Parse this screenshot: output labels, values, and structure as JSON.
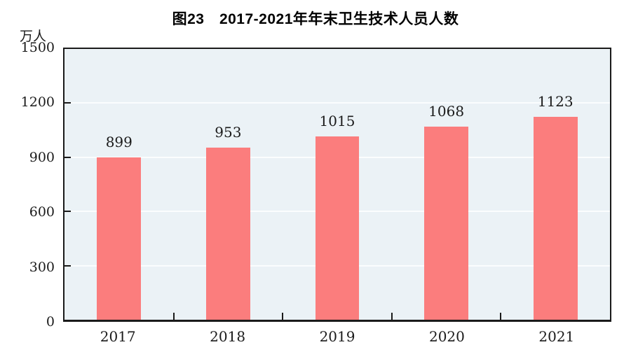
{
  "chart_data": {
    "type": "bar",
    "title": "图23　2017-2021年年末卫生技术人员人数",
    "unit_label": "万人",
    "categories": [
      "2017",
      "2018",
      "2019",
      "2020",
      "2021"
    ],
    "values": [
      899,
      953,
      1015,
      1068,
      1123
    ],
    "xlabel": "",
    "ylabel": "万人",
    "ylim": [
      0,
      1500
    ],
    "yticks": [
      0,
      300,
      600,
      900,
      1200,
      1500
    ],
    "grid": "horizontal",
    "legend_position": "none",
    "colors": {
      "bar_fill": "#fb7d7d",
      "plot_background": "#ebf2f6",
      "gridline": "#fbfdfe",
      "axis_border": "#1a1a1a",
      "text": "#000000",
      "page_background": "#ffffff"
    }
  }
}
